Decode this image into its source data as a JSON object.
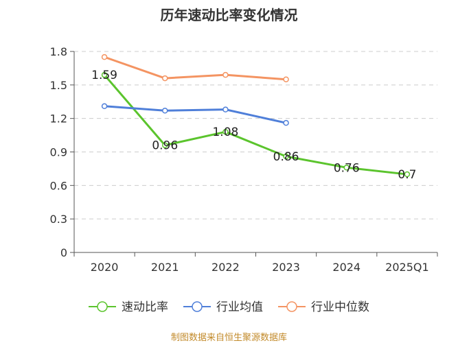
{
  "chart_data": {
    "type": "line",
    "title": "历年速动比率变化情况",
    "categories": [
      "2020",
      "2021",
      "2022",
      "2023",
      "2024",
      "2025Q1"
    ],
    "ylim": [
      0,
      1.8
    ],
    "yticks": [
      "0",
      "0.3",
      "0.6",
      "0.9",
      "1.2",
      "1.5",
      "1.8"
    ],
    "grid": true,
    "legend_position": "bottom",
    "series": [
      {
        "name": "速动比率",
        "color": "#5bc42d",
        "values": [
          1.59,
          0.96,
          1.08,
          0.86,
          0.76,
          0.7
        ],
        "labels": [
          "1.59",
          "0.96",
          "1.08",
          "0.86",
          "0.76",
          "0.7"
        ]
      },
      {
        "name": "行业均值",
        "color": "#4f7fd9",
        "values": [
          1.31,
          1.27,
          1.28,
          1.16,
          null,
          null
        ]
      },
      {
        "name": "行业中位数",
        "color": "#f49462",
        "values": [
          1.75,
          1.56,
          1.59,
          1.55,
          null,
          null
        ]
      }
    ]
  },
  "source_text": "制图数据来自恒生聚源数据库"
}
